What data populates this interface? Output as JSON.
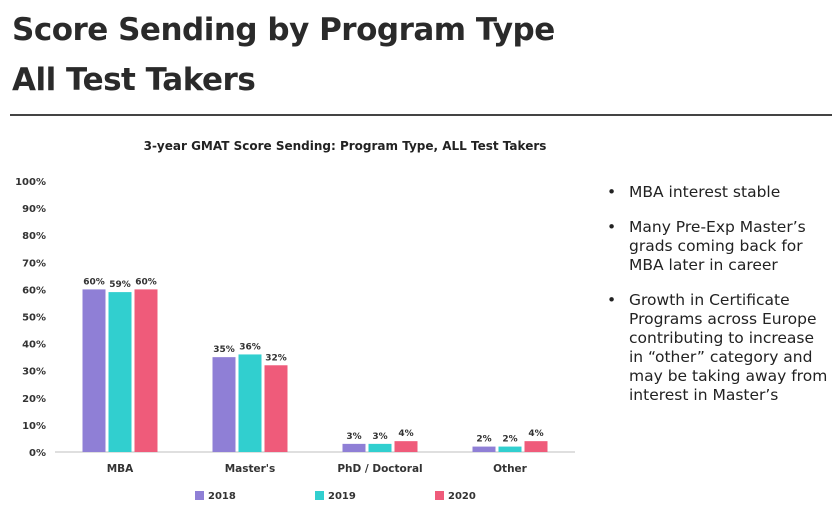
{
  "slide": {
    "title_line1": "Score Sending by Program Type",
    "title_line2": "All Test Takers"
  },
  "bullets": [
    "MBA interest stable",
    "Many Pre-Exp Master’s grads coming back for MBA later in career",
    "Growth in Certificate Programs across Europe contributing to increase in “other” category and may be taking away from interest in Master’s"
  ],
  "colors": {
    "2018": "#8f7fd6",
    "2019": "#31cfcf",
    "2020": "#ef5b7a"
  },
  "chart_data": {
    "type": "bar",
    "title": "3-year GMAT Score Sending: Program Type, ALL Test Takers",
    "categories": [
      "MBA",
      "Master's",
      "PhD / Doctoral",
      "Other"
    ],
    "series": [
      {
        "name": "2018",
        "values": [
          60,
          35,
          3,
          2
        ],
        "labels": [
          "60%",
          "35%",
          "3%",
          "2%"
        ]
      },
      {
        "name": "2019",
        "values": [
          59,
          36,
          3,
          2
        ],
        "labels": [
          "59%",
          "36%",
          "3%",
          "2%"
        ]
      },
      {
        "name": "2020",
        "values": [
          60,
          32,
          4,
          4
        ],
        "labels": [
          "60%",
          "32%",
          "4%",
          "4%"
        ]
      }
    ],
    "yticks": [
      "0%",
      "10%",
      "20%",
      "30%",
      "40%",
      "50%",
      "60%",
      "70%",
      "80%",
      "90%",
      "100%"
    ],
    "ylim": [
      0,
      100
    ],
    "grid": false,
    "legend": "bottom"
  }
}
